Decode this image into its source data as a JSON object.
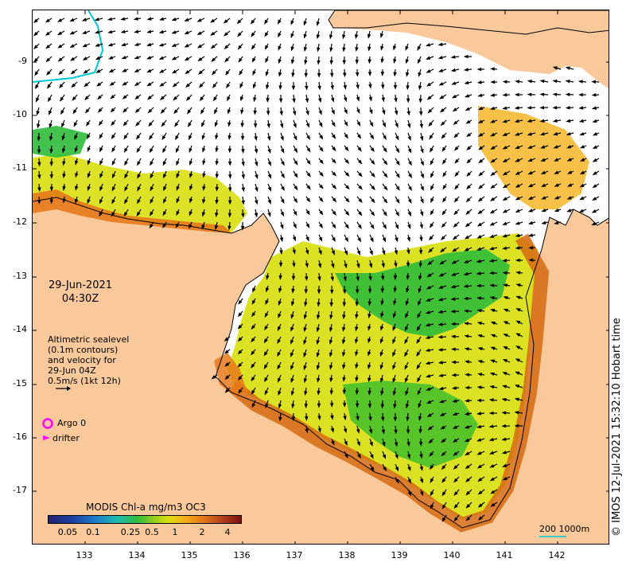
{
  "map": {
    "longitude_ticks": [
      "133",
      "134",
      "135",
      "136",
      "137",
      "138",
      "139",
      "140",
      "141",
      "142"
    ],
    "latitude_ticks": [
      "-9",
      "-10",
      "-11",
      "-12",
      "-13",
      "-14",
      "-15",
      "-16",
      "-17"
    ]
  },
  "overlay": {
    "date": "29-Jun-2021",
    "time": "04:30Z",
    "altimetry_lines": [
      "Altimetric sealevel",
      "(0.1m contours)",
      "and velocity for",
      "29-Jun 04Z",
      "0.5m/s (1kt 12h)"
    ],
    "argo_label": "Argo 0",
    "drifter_label": "drifter",
    "scale_label": "200  1000m",
    "credit": "© IMOS 12-Jul-2021 15:32:10 Hobart time"
  },
  "colorbar": {
    "title": "MODIS Chl-a mg/m3 OC3",
    "ticks": [
      "0.05",
      "0.1",
      "0.25",
      "0.5",
      "1",
      "2",
      "4"
    ]
  },
  "colors": {
    "land": "#f9c99b",
    "argo_marker": "#ff00ff",
    "drifter_marker": "#ff00ff",
    "coast_contour": "#00c8d8"
  }
}
